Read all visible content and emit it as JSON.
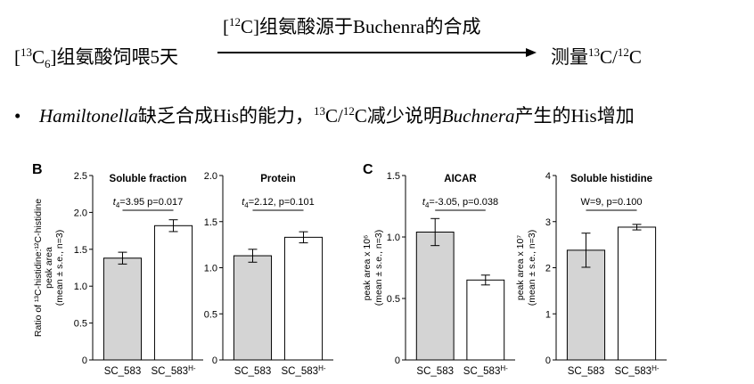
{
  "scheme": {
    "top_bracket_open": "[",
    "top_sup": "12",
    "top_rest": "C]组氨酸源于Buchenra的合成",
    "left_bracket_open": "[",
    "left_sup": "13",
    "left_c": "C",
    "left_sub": "6",
    "left_rest": "]组氨酸饲喂5天",
    "right_prefix": "测量",
    "right_sup1": "13",
    "right_mid": "C/",
    "right_sup2": "12",
    "right_end": "C"
  },
  "bullet": {
    "dot": "•",
    "italic1": "Hamiltonella",
    "text1": "缺乏合成His的能力，",
    "sup1": "13",
    "mid": "C/",
    "sup2": "12",
    "text2": "C减少说明",
    "italic2": "Buchnera",
    "text3": "产生的His增加"
  },
  "colors": {
    "filled": "#d4d4d4",
    "empty": "#ffffff",
    "stroke": "#000000"
  },
  "chart_data": [
    {
      "type": "bar",
      "panel_letter": "B",
      "title": "Soluble fraction",
      "ylabel_lines": [
        "Ratio of ¹³C-histidine:¹²C-histidine",
        "peak area",
        "(mean ± s.e., n=3)"
      ],
      "categories": [
        "SC_583",
        "SC_583H-"
      ],
      "category_labels": [
        {
          "base": "SC_583",
          "sup": ""
        },
        {
          "base": "SC_583",
          "sup": "H-"
        }
      ],
      "values": [
        1.38,
        1.82
      ],
      "errors": [
        0.08,
        0.08
      ],
      "ylim": [
        0,
        2.5
      ],
      "yticks": [
        0,
        0.5,
        1.0,
        1.5,
        2.0,
        2.5
      ],
      "ytick_labels": [
        "0",
        "0.5",
        "1.0",
        "1.5",
        "2.0",
        "2.5"
      ],
      "stat": {
        "prefix": "t",
        "sub": "4",
        "text": "=3.95 p=0.017"
      }
    },
    {
      "type": "bar",
      "title": "Protein",
      "categories": [
        "SC_583",
        "SC_583H-"
      ],
      "category_labels": [
        {
          "base": "SC_583",
          "sup": ""
        },
        {
          "base": "SC_583",
          "sup": "H-"
        }
      ],
      "values": [
        1.13,
        1.33
      ],
      "errors": [
        0.07,
        0.06
      ],
      "ylim": [
        0,
        2.0
      ],
      "yticks": [
        0,
        0.5,
        1.0,
        1.5,
        2.0
      ],
      "ytick_labels": [
        "0",
        "0.5",
        "1.0",
        "1.5",
        "2.0"
      ],
      "stat": {
        "prefix": "t",
        "sub": "4",
        "text": "=2.12, p=0.101"
      }
    },
    {
      "type": "bar",
      "panel_letter": "C",
      "title": "AICAR",
      "ylabel_lines": [
        "peak area x 10⁶",
        "(mean ± s.e., n=3)"
      ],
      "categories": [
        "SC_583",
        "SC_583H-"
      ],
      "category_labels": [
        {
          "base": "SC_583",
          "sup": ""
        },
        {
          "base": "SC_583",
          "sup": "H-"
        }
      ],
      "values": [
        1.04,
        0.65
      ],
      "errors": [
        0.11,
        0.04
      ],
      "ylim": [
        0,
        1.5
      ],
      "yticks": [
        0,
        0.5,
        1.0,
        1.5
      ],
      "ytick_labels": [
        "0",
        "0.5",
        "1.0",
        "1.5"
      ],
      "stat": {
        "prefix": "t",
        "sub": "4",
        "text": "=-3.05, p=0.038"
      }
    },
    {
      "type": "bar",
      "title": "Soluble histidine",
      "ylabel_lines": [
        "peak area x 10⁷",
        "(mean ± s.e., n=3)"
      ],
      "categories": [
        "SC_583",
        "SC_583H-"
      ],
      "category_labels": [
        {
          "base": "SC_583",
          "sup": ""
        },
        {
          "base": "SC_583",
          "sup": "H-"
        }
      ],
      "values": [
        2.38,
        2.88
      ],
      "errors": [
        0.37,
        0.06
      ],
      "ylim": [
        0,
        4
      ],
      "yticks": [
        0,
        1,
        2,
        3,
        4
      ],
      "ytick_labels": [
        "0",
        "1",
        "2",
        "3",
        "4"
      ],
      "stat": {
        "prefix": "",
        "sub": "",
        "text": "W=9, p=0.100"
      }
    }
  ]
}
